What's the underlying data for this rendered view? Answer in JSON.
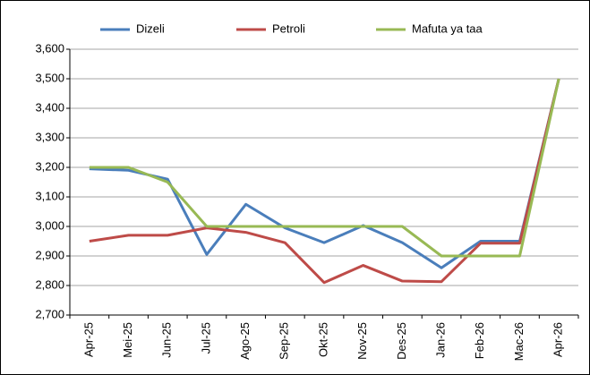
{
  "chart_data": {
    "type": "line",
    "categories": [
      "Apr-25",
      "Mei-25",
      "Jun-25",
      "Jul-25",
      "Ago-25",
      "Sep-25",
      "Okt-25",
      "Nov-25",
      "Des-25",
      "Jan-26",
      "Feb-26",
      "Mac-26",
      "Apr-26"
    ],
    "series": [
      {
        "name": "Dizeli",
        "color": "#4a7ebb",
        "values": [
          3195,
          3190,
          3160,
          2905,
          3075,
          2995,
          2945,
          3003,
          2945,
          2860,
          2950,
          2950,
          3500
        ]
      },
      {
        "name": "Petroli",
        "color": "#be4b48",
        "values": [
          2950,
          2970,
          2970,
          2995,
          2980,
          2945,
          2810,
          2868,
          2815,
          2813,
          2943,
          2943,
          3500
        ]
      },
      {
        "name": "Mafuta ya taa",
        "color": "#98b954",
        "values": [
          3200,
          3200,
          3150,
          3000,
          3000,
          3000,
          3000,
          3000,
          3000,
          2900,
          2900,
          2900,
          3500
        ]
      }
    ],
    "ylim": [
      2700,
      3600
    ],
    "yticks": [
      {
        "value": 2700,
        "label": "2,700"
      },
      {
        "value": 2800,
        "label": "2,800"
      },
      {
        "value": 2900,
        "label": "2,900"
      },
      {
        "value": 3000,
        "label": "3,000"
      },
      {
        "value": 3100,
        "label": "3,100"
      },
      {
        "value": 3200,
        "label": "3,200"
      },
      {
        "value": 3300,
        "label": "3,300"
      },
      {
        "value": 3400,
        "label": "3,400"
      },
      {
        "value": 3500,
        "label": "3,500"
      },
      {
        "value": 3600,
        "label": "3,600"
      }
    ],
    "grid": true,
    "legend": "top"
  }
}
